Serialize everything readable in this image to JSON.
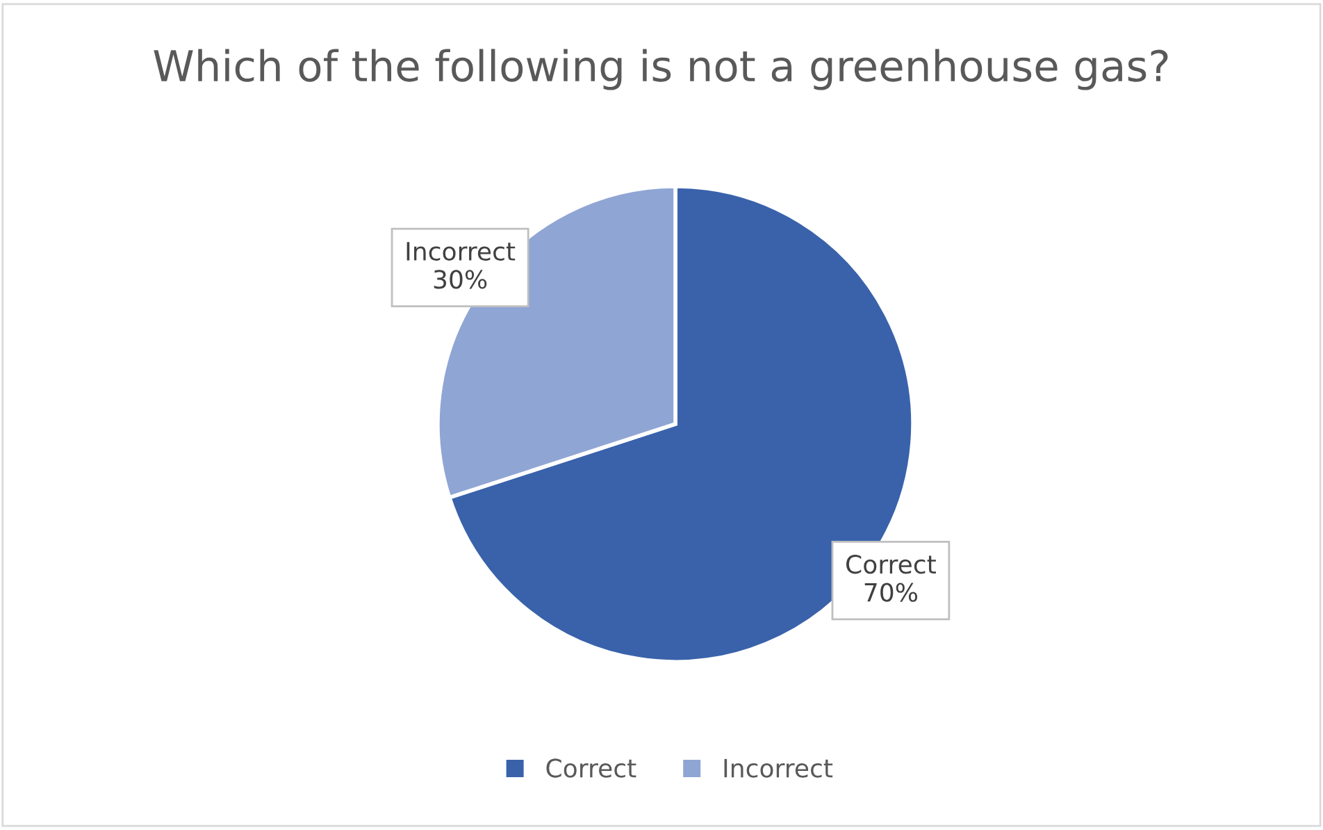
{
  "chart_data": {
    "type": "pie",
    "title": "Which of the following is not a greenhouse gas?",
    "categories": [
      "Correct",
      "Incorrect"
    ],
    "values": [
      70,
      30
    ],
    "colors": [
      "#3a62ab",
      "#8fa5d4"
    ],
    "value_labels": [
      "Correct\n70%",
      "Incorrect\n30%"
    ],
    "legend": "bottom"
  }
}
